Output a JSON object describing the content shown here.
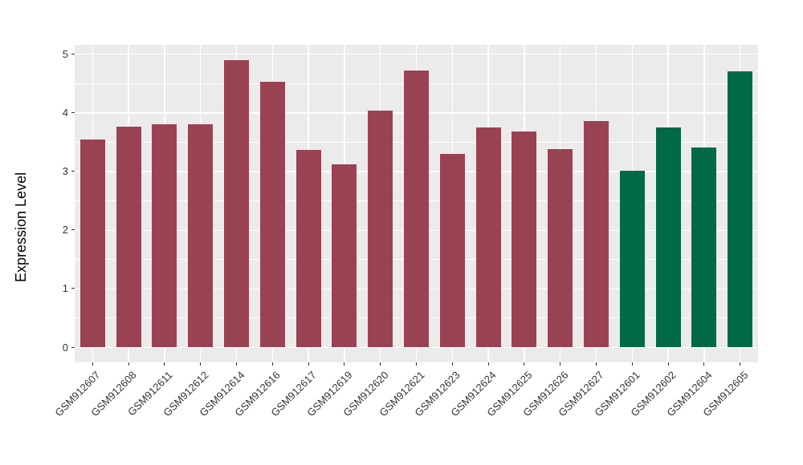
{
  "figure": {
    "background": "#FFFFFF",
    "panel_background": "#EBEBEB",
    "gridline_color": "#FFFFFF",
    "axis_text_color": "#333333",
    "axis_title_color": "#000000"
  },
  "chart_data": {
    "type": "bar",
    "title": "",
    "xlabel": "",
    "ylabel": "Expression Level",
    "ylim": [
      0,
      5
    ],
    "yticks": [
      0,
      1,
      2,
      3,
      4,
      5
    ],
    "grid": "major-and-minor",
    "legend_position": "none",
    "x_tick_rotation": -45,
    "categories": [
      "GSM912607",
      "GSM912608",
      "GSM912611",
      "GSM912612",
      "GSM912614",
      "GSM912616",
      "GSM912617",
      "GSM912619",
      "GSM912620",
      "GSM912621",
      "GSM912623",
      "GSM912624",
      "GSM912625",
      "GSM912626",
      "GSM912627",
      "GSM912601",
      "GSM912602",
      "GSM912604",
      "GSM912605"
    ],
    "values": [
      3.54,
      3.76,
      3.8,
      3.8,
      4.89,
      4.52,
      3.36,
      3.11,
      4.03,
      4.71,
      3.29,
      3.74,
      3.68,
      3.38,
      3.85,
      3.0,
      3.74,
      3.4,
      4.7
    ],
    "bar_groups": [
      "group1",
      "group1",
      "group1",
      "group1",
      "group1",
      "group1",
      "group1",
      "group1",
      "group1",
      "group1",
      "group1",
      "group1",
      "group1",
      "group1",
      "group1",
      "group2",
      "group2",
      "group2",
      "group2"
    ],
    "group_colors": {
      "group1": "#994352",
      "group2": "#006946"
    }
  }
}
